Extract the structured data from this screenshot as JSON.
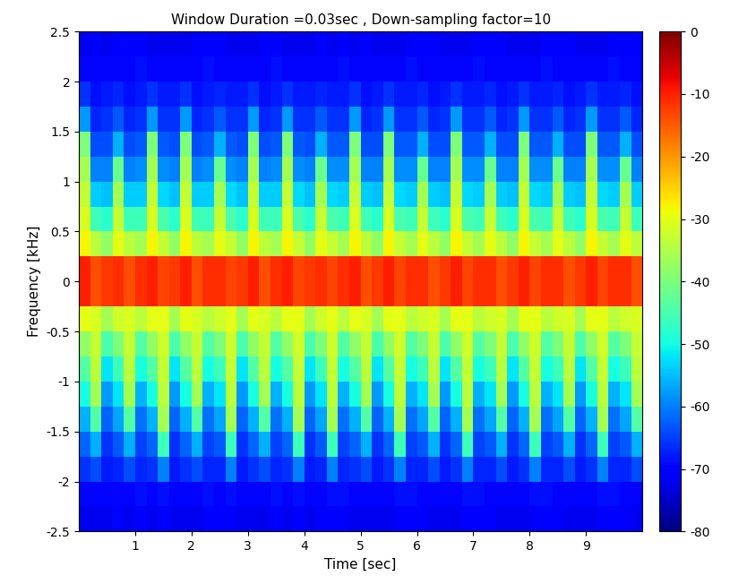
{
  "chart_data": {
    "type": "heatmap",
    "title": "Window Duration =0.03sec , Down-sampling factor=10",
    "x_label": "Time [sec]",
    "y_label": "Frequency [kHz]",
    "xlim": [
      0,
      10
    ],
    "ylim": [
      -2.5,
      2.5
    ],
    "xticks": [
      1,
      2,
      3,
      4,
      5,
      6,
      7,
      8,
      9
    ],
    "yticks": [
      -2.5,
      -2,
      -1.5,
      -1,
      -0.5,
      0,
      0.5,
      1,
      1.5,
      2,
      2.5
    ],
    "color": "jet",
    "x_edges": [
      0,
      0.2,
      0.4,
      0.6,
      0.8,
      1,
      1.2,
      1.4,
      1.6,
      1.8,
      2,
      2.2,
      2.4,
      2.6,
      2.8,
      3,
      3.2,
      3.4,
      3.6,
      3.8,
      4,
      4.2,
      4.4,
      4.6,
      4.8,
      5,
      5.2,
      5.4,
      5.6,
      5.8,
      6,
      6.2,
      6.4,
      6.6,
      6.8,
      7,
      7.2,
      7.4,
      7.6,
      7.8,
      8,
      8.2,
      8.4,
      8.6,
      8.8,
      9,
      9.2,
      9.4,
      9.6,
      9.8,
      10
    ],
    "y_edges": [
      -2.5,
      -2.25,
      -2,
      -1.75,
      -1.5,
      -1.25,
      -1,
      -0.75,
      -0.5,
      -0.25,
      0,
      0.25,
      0.5,
      0.75,
      1,
      1.25,
      1.5,
      1.75,
      2,
      2.25,
      2.5
    ],
    "cells": [
      [
        -72,
        -70,
        -66,
        -62,
        -56,
        -50,
        -44,
        -38,
        -30,
        -10,
        -10,
        -28,
        -31,
        -33,
        -36,
        -40,
        -58,
        -66,
        -70,
        -72
      ],
      [
        -72,
        -70,
        -64,
        -56,
        -44,
        -36,
        -34,
        -33,
        -31,
        -14,
        -14,
        -34,
        -46,
        -54,
        -60,
        -64,
        -67,
        -69,
        -70,
        -71
      ],
      [
        -72,
        -70,
        -68,
        -66,
        -62,
        -58,
        -52,
        -45,
        -36,
        -12,
        -12,
        -38,
        -48,
        -55,
        -60,
        -64,
        -66,
        -68,
        -70,
        -72
      ],
      [
        -71,
        -70,
        -67,
        -63,
        -57,
        -52,
        -46,
        -40,
        -32,
        -11,
        -11,
        -30,
        -33,
        -36,
        -42,
        -56,
        -63,
        -67,
        -70,
        -71
      ],
      [
        -72,
        -70,
        -64,
        -56,
        -44,
        -36,
        -34,
        -33,
        -31,
        -14,
        -14,
        -34,
        -46,
        -54,
        -60,
        -64,
        -67,
        -69,
        -70,
        -71
      ],
      [
        -71,
        -69,
        -67,
        -65,
        -61,
        -56,
        -50,
        -44,
        -34,
        -11,
        -11,
        -36,
        -46,
        -54,
        -59,
        -63,
        -66,
        -68,
        -69,
        -71
      ],
      [
        -72,
        -70,
        -66,
        -62,
        -56,
        -50,
        -44,
        -38,
        -30,
        -10,
        -10,
        -28,
        -31,
        -33,
        -36,
        -40,
        -58,
        -66,
        -70,
        -72
      ],
      [
        -71,
        -69,
        -60,
        -46,
        -36,
        -34,
        -33,
        -32,
        -30,
        -13,
        -13,
        -33,
        -45,
        -53,
        -59,
        -63,
        -66,
        -68,
        -70,
        -72
      ],
      [
        -72,
        -70,
        -68,
        -66,
        -62,
        -58,
        -52,
        -45,
        -36,
        -12,
        -12,
        -38,
        -48,
        -55,
        -60,
        -64,
        -66,
        -68,
        -70,
        -72
      ],
      [
        -72,
        -70,
        -66,
        -62,
        -56,
        -50,
        -44,
        -38,
        -30,
        -10,
        -10,
        -28,
        -31,
        -33,
        -36,
        -40,
        -58,
        -66,
        -70,
        -72
      ],
      [
        -72,
        -70,
        -64,
        -56,
        -44,
        -36,
        -34,
        -33,
        -31,
        -14,
        -14,
        -34,
        -46,
        -54,
        -60,
        -64,
        -67,
        -69,
        -70,
        -71
      ],
      [
        -71,
        -69,
        -67,
        -65,
        -61,
        -56,
        -50,
        -44,
        -34,
        -11,
        -11,
        -36,
        -46,
        -54,
        -59,
        -63,
        -66,
        -68,
        -69,
        -71
      ],
      [
        -71,
        -70,
        -67,
        -63,
        -57,
        -52,
        -46,
        -40,
        -32,
        -11,
        -11,
        -30,
        -33,
        -36,
        -42,
        -56,
        -63,
        -67,
        -70,
        -71
      ],
      [
        -71,
        -69,
        -60,
        -46,
        -36,
        -34,
        -33,
        -32,
        -30,
        -13,
        -13,
        -33,
        -45,
        -53,
        -59,
        -63,
        -66,
        -68,
        -70,
        -72
      ],
      [
        -72,
        -70,
        -68,
        -66,
        -62,
        -58,
        -52,
        -45,
        -36,
        -12,
        -12,
        -38,
        -48,
        -55,
        -60,
        -64,
        -66,
        -68,
        -70,
        -72
      ],
      [
        -72,
        -70,
        -66,
        -62,
        -56,
        -50,
        -44,
        -38,
        -30,
        -10,
        -10,
        -28,
        -31,
        -33,
        -36,
        -40,
        -58,
        -66,
        -70,
        -72
      ],
      [
        -72,
        -70,
        -64,
        -56,
        -44,
        -36,
        -34,
        -33,
        -31,
        -14,
        -14,
        -34,
        -46,
        -54,
        -60,
        -64,
        -67,
        -69,
        -70,
        -71
      ],
      [
        -71,
        -69,
        -67,
        -65,
        -61,
        -56,
        -50,
        -44,
        -34,
        -11,
        -11,
        -36,
        -46,
        -54,
        -59,
        -63,
        -66,
        -68,
        -69,
        -71
      ],
      [
        -72,
        -70,
        -66,
        -62,
        -56,
        -50,
        -44,
        -38,
        -30,
        -10,
        -10,
        -28,
        -31,
        -33,
        -36,
        -40,
        -58,
        -66,
        -70,
        -72
      ],
      [
        -71,
        -69,
        -60,
        -46,
        -36,
        -34,
        -33,
        -32,
        -30,
        -13,
        -13,
        -33,
        -45,
        -53,
        -59,
        -63,
        -66,
        -68,
        -70,
        -72
      ],
      [
        -72,
        -70,
        -68,
        -66,
        -62,
        -58,
        -52,
        -45,
        -36,
        -12,
        -12,
        -38,
        -48,
        -55,
        -60,
        -64,
        -66,
        -68,
        -70,
        -72
      ],
      [
        -71,
        -70,
        -67,
        -63,
        -57,
        -52,
        -46,
        -40,
        -32,
        -11,
        -11,
        -30,
        -33,
        -36,
        -42,
        -56,
        -63,
        -67,
        -70,
        -71
      ],
      [
        -71,
        -69,
        -60,
        -46,
        -36,
        -34,
        -33,
        -32,
        -30,
        -13,
        -13,
        -33,
        -45,
        -53,
        -59,
        -63,
        -66,
        -68,
        -70,
        -72
      ],
      [
        -71,
        -69,
        -67,
        -65,
        -61,
        -56,
        -50,
        -44,
        -34,
        -11,
        -11,
        -36,
        -46,
        -54,
        -59,
        -63,
        -66,
        -68,
        -69,
        -71
      ],
      [
        -72,
        -70,
        -66,
        -62,
        -56,
        -50,
        -44,
        -38,
        -30,
        -10,
        -10,
        -28,
        -31,
        -33,
        -36,
        -40,
        -58,
        -66,
        -70,
        -72
      ],
      [
        -72,
        -70,
        -64,
        -56,
        -44,
        -36,
        -34,
        -33,
        -31,
        -14,
        -14,
        -34,
        -46,
        -54,
        -60,
        -64,
        -67,
        -69,
        -70,
        -71
      ],
      [
        -72,
        -70,
        -68,
        -66,
        -62,
        -58,
        -52,
        -45,
        -36,
        -12,
        -12,
        -38,
        -48,
        -55,
        -60,
        -64,
        -66,
        -68,
        -70,
        -72
      ],
      [
        -72,
        -70,
        -66,
        -62,
        -56,
        -50,
        -44,
        -38,
        -30,
        -10,
        -10,
        -28,
        -31,
        -33,
        -36,
        -40,
        -58,
        -66,
        -70,
        -72
      ],
      [
        -71,
        -69,
        -60,
        -46,
        -36,
        -34,
        -33,
        -32,
        -30,
        -13,
        -13,
        -33,
        -45,
        -53,
        -59,
        -63,
        -66,
        -68,
        -70,
        -72
      ],
      [
        -71,
        -69,
        -67,
        -65,
        -61,
        -56,
        -50,
        -44,
        -34,
        -11,
        -11,
        -36,
        -46,
        -54,
        -59,
        -63,
        -66,
        -68,
        -69,
        -71
      ],
      [
        -71,
        -70,
        -67,
        -63,
        -57,
        -52,
        -46,
        -40,
        -32,
        -11,
        -11,
        -30,
        -33,
        -36,
        -42,
        -56,
        -63,
        -67,
        -70,
        -71
      ],
      [
        -72,
        -70,
        -64,
        -56,
        -44,
        -36,
        -34,
        -33,
        -31,
        -14,
        -14,
        -34,
        -46,
        -54,
        -60,
        -64,
        -67,
        -69,
        -70,
        -71
      ],
      [
        -72,
        -70,
        -68,
        -66,
        -62,
        -58,
        -52,
        -45,
        -36,
        -12,
        -12,
        -38,
        -48,
        -55,
        -60,
        -64,
        -66,
        -68,
        -70,
        -72
      ],
      [
        -72,
        -70,
        -66,
        -62,
        -56,
        -50,
        -44,
        -38,
        -30,
        -10,
        -10,
        -28,
        -31,
        -33,
        -36,
        -40,
        -58,
        -66,
        -70,
        -72
      ],
      [
        -71,
        -69,
        -60,
        -46,
        -36,
        -34,
        -33,
        -32,
        -30,
        -13,
        -13,
        -33,
        -45,
        -53,
        -59,
        -63,
        -66,
        -68,
        -70,
        -72
      ],
      [
        -71,
        -69,
        -67,
        -65,
        -61,
        -56,
        -50,
        -44,
        -34,
        -11,
        -11,
        -36,
        -46,
        -54,
        -59,
        -63,
        -66,
        -68,
        -69,
        -71
      ],
      [
        -71,
        -70,
        -67,
        -63,
        -57,
        -52,
        -46,
        -40,
        -32,
        -11,
        -11,
        -30,
        -33,
        -36,
        -42,
        -56,
        -63,
        -67,
        -70,
        -71
      ],
      [
        -72,
        -70,
        -64,
        -56,
        -44,
        -36,
        -34,
        -33,
        -31,
        -14,
        -14,
        -34,
        -46,
        -54,
        -60,
        -64,
        -67,
        -69,
        -70,
        -71
      ],
      [
        -72,
        -70,
        -68,
        -66,
        -62,
        -58,
        -52,
        -45,
        -36,
        -12,
        -12,
        -38,
        -48,
        -55,
        -60,
        -64,
        -66,
        -68,
        -70,
        -72
      ],
      [
        -72,
        -70,
        -66,
        -62,
        -56,
        -50,
        -44,
        -38,
        -30,
        -10,
        -10,
        -28,
        -31,
        -33,
        -36,
        -40,
        -58,
        -66,
        -70,
        -72
      ],
      [
        -71,
        -69,
        -60,
        -46,
        -36,
        -34,
        -33,
        -32,
        -30,
        -13,
        -13,
        -33,
        -45,
        -53,
        -59,
        -63,
        -66,
        -68,
        -70,
        -72
      ],
      [
        -71,
        -69,
        -67,
        -65,
        -61,
        -56,
        -50,
        -44,
        -34,
        -11,
        -11,
        -36,
        -46,
        -54,
        -59,
        -63,
        -66,
        -68,
        -69,
        -71
      ],
      [
        -71,
        -70,
        -67,
        -63,
        -57,
        -52,
        -46,
        -40,
        -32,
        -11,
        -11,
        -30,
        -33,
        -36,
        -42,
        -56,
        -63,
        -67,
        -70,
        -71
      ],
      [
        -72,
        -70,
        -64,
        -56,
        -44,
        -36,
        -34,
        -33,
        -31,
        -14,
        -14,
        -34,
        -46,
        -54,
        -60,
        -64,
        -67,
        -69,
        -70,
        -71
      ],
      [
        -72,
        -70,
        -68,
        -66,
        -62,
        -58,
        -52,
        -45,
        -36,
        -12,
        -12,
        -38,
        -48,
        -55,
        -60,
        -64,
        -66,
        -68,
        -70,
        -72
      ],
      [
        -72,
        -70,
        -66,
        -62,
        -56,
        -50,
        -44,
        -38,
        -30,
        -10,
        -10,
        -28,
        -31,
        -33,
        -36,
        -40,
        -58,
        -66,
        -70,
        -72
      ],
      [
        -71,
        -69,
        -60,
        -46,
        -36,
        -34,
        -33,
        -32,
        -30,
        -13,
        -13,
        -33,
        -45,
        -53,
        -59,
        -63,
        -66,
        -68,
        -70,
        -72
      ],
      [
        -71,
        -69,
        -67,
        -65,
        -61,
        -56,
        -50,
        -44,
        -34,
        -11,
        -11,
        -36,
        -46,
        -54,
        -59,
        -63,
        -66,
        -68,
        -69,
        -71
      ],
      [
        -71,
        -70,
        -67,
        -63,
        -57,
        -52,
        -46,
        -40,
        -32,
        -11,
        -11,
        -30,
        -33,
        -36,
        -42,
        -56,
        -63,
        -67,
        -70,
        -71
      ],
      [
        -72,
        -70,
        -64,
        -56,
        -44,
        -36,
        -34,
        -33,
        -31,
        -14,
        -14,
        -34,
        -46,
        -54,
        -60,
        -64,
        -67,
        -69,
        -70,
        -71
      ]
    ],
    "colorbar": {
      "range": [
        -80,
        0
      ],
      "ticks": [
        0,
        -10,
        -20,
        -30,
        -40,
        -50,
        -60,
        -70,
        -80
      ]
    }
  }
}
